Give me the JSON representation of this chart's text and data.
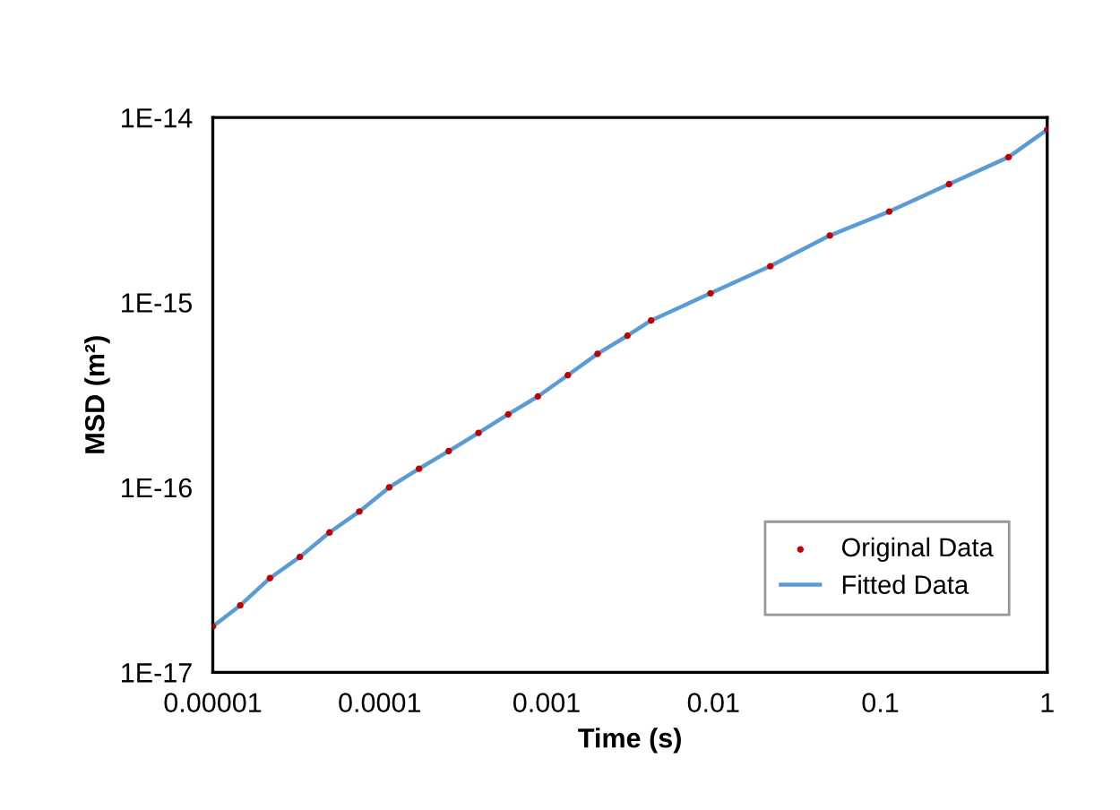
{
  "chart_data": {
    "type": "scatter",
    "xlabel": "Time (s)",
    "ylabel": "MSD (m²)",
    "log": "xy",
    "grid": false,
    "legend": "bottom right",
    "xlim": [
      1e-05,
      1
    ],
    "ylim": [
      1e-17,
      1e-14
    ],
    "xticks": [
      {
        "value": 1e-05,
        "label": "0.00001"
      },
      {
        "value": 0.0001,
        "label": "0.0001"
      },
      {
        "value": 0.001,
        "label": "0.001"
      },
      {
        "value": 0.01,
        "label": "0.01"
      },
      {
        "value": 0.1,
        "label": "0.1"
      },
      {
        "value": 1,
        "label": "1"
      }
    ],
    "yticks": [
      {
        "value": 1e-17,
        "label": "1E-17"
      },
      {
        "value": 1e-16,
        "label": "1E-16"
      },
      {
        "value": 1e-15,
        "label": "1E-15"
      },
      {
        "value": 1e-14,
        "label": "1E-14"
      }
    ],
    "series": [
      {
        "name": "Original Data",
        "marker": "circle",
        "color": "#c00000",
        "x": [
          1e-05,
          1.46e-05,
          2.2e-05,
          3.32e-05,
          5e-05,
          7.55e-05,
          0.000114,
          0.000172,
          0.000259,
          0.000391,
          0.000589,
          0.000887,
          0.00134,
          0.00202,
          0.00305,
          0.00423,
          0.0096,
          0.0219,
          0.0498,
          0.113,
          0.258,
          0.586,
          1
        ],
        "values": [
          1.77e-17,
          2.3e-17,
          3.23e-17,
          4.2e-17,
          5.7e-17,
          7.4e-17,
          1e-16,
          1.26e-16,
          1.57e-16,
          1.97e-16,
          2.48e-16,
          3.1e-16,
          4.04e-16,
          5.27e-16,
          6.6e-16,
          7.98e-16,
          1.12e-15,
          1.57e-15,
          2.3e-15,
          3.1e-15,
          4.36e-15,
          6.1e-15,
          8.6e-15
        ]
      },
      {
        "name": "Fitted Data",
        "type": "line",
        "marker": "none",
        "line_style": "solid",
        "color": "#5b9bd5",
        "x": [
          1e-05,
          1.46e-05,
          2.2e-05,
          3.32e-05,
          5e-05,
          7.55e-05,
          0.000114,
          0.000172,
          0.000259,
          0.000391,
          0.000589,
          0.000887,
          0.00134,
          0.00202,
          0.00305,
          0.00423,
          0.0096,
          0.0219,
          0.0498,
          0.113,
          0.258,
          0.586,
          1
        ],
        "values": [
          1.77e-17,
          2.3e-17,
          3.23e-17,
          4.2e-17,
          5.7e-17,
          7.4e-17,
          1e-16,
          1.26e-16,
          1.57e-16,
          1.97e-16,
          2.48e-16,
          3.1e-16,
          4.04e-16,
          5.27e-16,
          6.6e-16,
          7.98e-16,
          1.12e-15,
          1.57e-15,
          2.3e-15,
          3.1e-15,
          4.36e-15,
          6.1e-15,
          8.6e-15
        ]
      }
    ]
  }
}
